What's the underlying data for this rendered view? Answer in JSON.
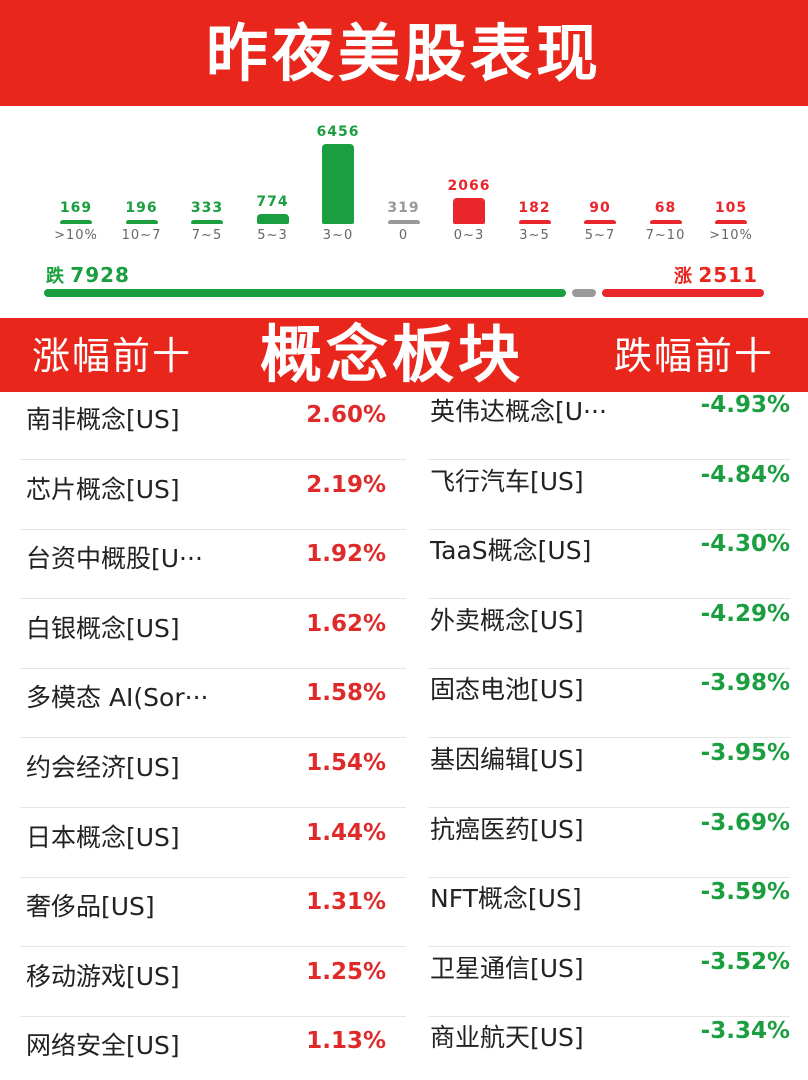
{
  "header": {
    "title": "昨夜美股表现"
  },
  "chart_data": {
    "type": "bar",
    "categories": [
      ">10%",
      "10~7",
      "7~5",
      "5~3",
      "3~0",
      "0",
      "0~3",
      "3~5",
      "5~7",
      "7~10",
      ">10%"
    ],
    "values": [
      169,
      196,
      333,
      774,
      6456,
      319,
      2066,
      182,
      90,
      68,
      105
    ],
    "colors": [
      "#1a9e3f",
      "#1a9e3f",
      "#1a9e3f",
      "#1a9e3f",
      "#1a9e3f",
      "#999999",
      "#e8262c",
      "#e8262c",
      "#e8262c",
      "#e8262c",
      "#e8262c"
    ]
  },
  "summary": {
    "fall_label": "跌",
    "fall_count": "7928",
    "rise_label": "涨",
    "rise_count": "2511",
    "flat_count": 319,
    "fall_color": "#1a9e3f",
    "flat_color": "#999999",
    "rise_color": "#e8262c"
  },
  "section": {
    "left_title": "涨幅前十",
    "center_title": "概念板块",
    "right_title": "跌幅前十"
  },
  "gainers": [
    {
      "name": "南非概念[US]",
      "pct": "2.60%"
    },
    {
      "name": "芯片概念[US]",
      "pct": "2.19%"
    },
    {
      "name": "台资中概股[U···",
      "pct": "1.92%"
    },
    {
      "name": "白银概念[US]",
      "pct": "1.62%"
    },
    {
      "name": "多模态 AI(Sor···",
      "pct": "1.58%"
    },
    {
      "name": "约会经济[US]",
      "pct": "1.54%"
    },
    {
      "name": "日本概念[US]",
      "pct": "1.44%"
    },
    {
      "name": "奢侈品[US]",
      "pct": "1.31%"
    },
    {
      "name": "移动游戏[US]",
      "pct": "1.25%"
    },
    {
      "name": "网络安全[US]",
      "pct": "1.13%"
    }
  ],
  "losers": [
    {
      "name": "英伟达概念[U···",
      "pct": "-4.93%"
    },
    {
      "name": "飞行汽车[US]",
      "pct": "-4.84%"
    },
    {
      "name": "TaaS概念[US]",
      "pct": "-4.30%"
    },
    {
      "name": "外卖概念[US]",
      "pct": "-4.29%"
    },
    {
      "name": "固态电池[US]",
      "pct": "-3.98%"
    },
    {
      "name": "基因编辑[US]",
      "pct": "-3.95%"
    },
    {
      "name": "抗癌医药[US]",
      "pct": "-3.69%"
    },
    {
      "name": "NFT概念[US]",
      "pct": "-3.59%"
    },
    {
      "name": "卫星通信[US]",
      "pct": "-3.52%"
    },
    {
      "name": "商业航天[US]",
      "pct": "-3.34%"
    }
  ]
}
